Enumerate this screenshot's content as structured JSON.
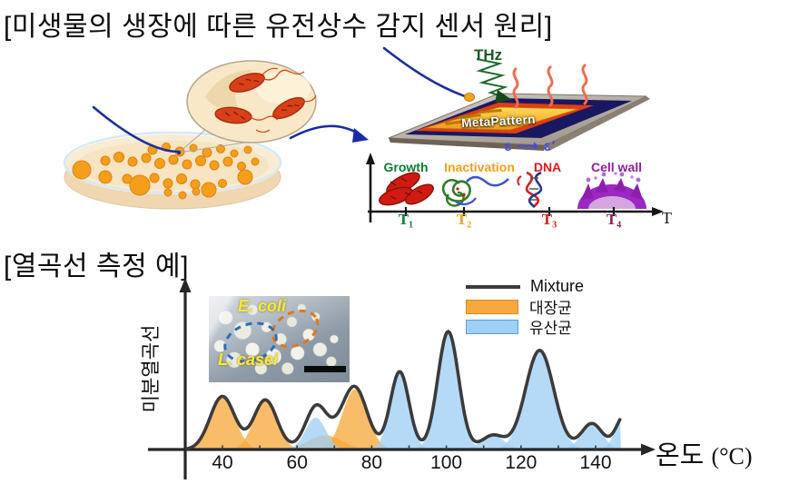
{
  "page": {
    "title_top": "[미생물의 생장에 따른 유전상수 감지 센서 원리]",
    "title_example": "[열곡선 측정 예]"
  },
  "sensor": {
    "thz_label": "THz",
    "thz_color": "#1a5c22",
    "chip_label": "MetaPattern",
    "chip_label_color": "#ffffff",
    "epsilon_label": "ε ⟶ ε′",
    "epsilon_color": "#4a4adf",
    "stages": [
      {
        "label": "Growth",
        "color": "#0e7c30",
        "tick": "T₁",
        "tick_color": "#107c34"
      },
      {
        "label": "Inactivation",
        "color": "#f0a01e",
        "tick": "T₂",
        "tick_color": "#efa01e"
      },
      {
        "label": "DNA",
        "color": "#e31616",
        "tick": "T₃",
        "tick_color": "#e31616"
      },
      {
        "label": "Cell wall",
        "color": "#8e1f9e",
        "tick": "T₄",
        "tick_color": "#8a1f5c"
      }
    ],
    "time_axis_label": "T"
  },
  "inset": {
    "top_label": "E. coli",
    "top_label_color": "#f6e93c",
    "bottom_label": "L. casei",
    "bottom_label_color": "#f6e93c",
    "circle_colors": {
      "e_coli": "#df7817",
      "l_casei": "#2d6db8"
    }
  },
  "chart_data": {
    "type": "area",
    "title": "",
    "xlabel": "온도",
    "xlabel_unit": "(°C)",
    "ylabel": "미분열곡선",
    "x_ticks": [
      40,
      60,
      80,
      100,
      120,
      140
    ],
    "x_range": [
      30.5,
      146.8
    ],
    "y_range": [
      0,
      1.1
    ],
    "grid": false,
    "legend_position": "top-right",
    "legend": [
      {
        "label": "Mixture",
        "color": "#3b3b3b"
      },
      {
        "label": "대장균",
        "color": "#f7a93f"
      },
      {
        "label": "유산균",
        "color": "#9fd0f5"
      }
    ],
    "series": [
      {
        "name": "대장균",
        "color": "#f7a93f",
        "border": "#d8861c",
        "peaks": [
          {
            "center": 40,
            "height": 0.45,
            "width": 3.3
          },
          {
            "center": 51.5,
            "height": 0.42,
            "width": 3.1
          },
          {
            "center": 67.5,
            "height": 0.12,
            "width": 4.5
          },
          {
            "center": 75.5,
            "height": 0.51,
            "width": 3.3
          }
        ]
      },
      {
        "name": "유산균",
        "color": "#9fd0f5",
        "border": "#5f9bd4",
        "peaks": [
          {
            "center": 65,
            "height": 0.27,
            "width": 2.7
          },
          {
            "center": 87.5,
            "height": 0.66,
            "width": 2.5
          },
          {
            "center": 100.5,
            "height": 1.0,
            "width": 2.8
          },
          {
            "center": 112.5,
            "height": 0.12,
            "width": 3.0
          },
          {
            "center": 125,
            "height": 0.84,
            "width": 3.8
          },
          {
            "center": 139,
            "height": 0.22,
            "width": 2.8
          },
          {
            "center": 148,
            "height": 0.3,
            "width": 2.4
          }
        ]
      }
    ],
    "mixture": {
      "label": "Mixture",
      "color": "#3b3b3b"
    }
  }
}
